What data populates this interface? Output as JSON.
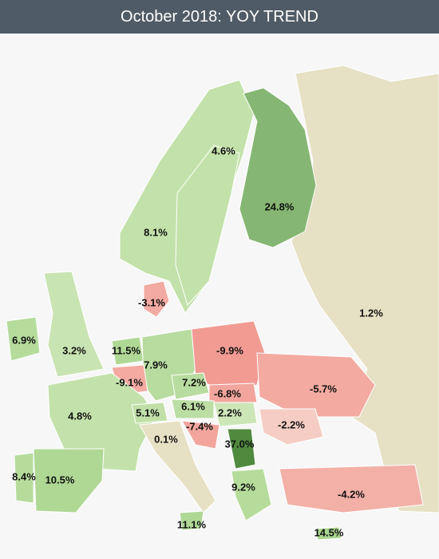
{
  "header": {
    "title": "October 2018: YOY TREND"
  },
  "regions": [
    {
      "label": "4.6%",
      "color": "#c3e2ab"
    },
    {
      "label": "24.8%",
      "color": "#86b673"
    },
    {
      "label": "8.1%",
      "color": "#c3e2ab"
    },
    {
      "label": "-3.1%",
      "color": "#f2aaa2"
    },
    {
      "label": "1.2%",
      "color": "#e6e0c4"
    },
    {
      "label": "6.9%",
      "color": "#b6dc9c"
    },
    {
      "label": "3.2%",
      "color": "#c8e4b2"
    },
    {
      "label": "11.5%",
      "color": "#b0d895"
    },
    {
      "label": "7.9%",
      "color": "#b8dc9f"
    },
    {
      "label": "-9.9%",
      "color": "#f19b93"
    },
    {
      "label": "-9.1%",
      "color": "#f4aaa1"
    },
    {
      "label": "7.2%",
      "color": "#b8dc9f"
    },
    {
      "label": "-6.8%",
      "color": "#f2a59c"
    },
    {
      "label": "-5.7%",
      "color": "#f3aaa1"
    },
    {
      "label": "4.8%",
      "color": "#c3e2ab"
    },
    {
      "label": "5.1%",
      "color": "#c0e0a8"
    },
    {
      "label": "6.1%",
      "color": "#bcde a4"
    },
    {
      "label": "2.2%",
      "color": "#cde6b8"
    },
    {
      "label": "-2.2%",
      "color": "#f5cdc4"
    },
    {
      "label": "0.1%",
      "color": "#e6e0c4"
    },
    {
      "label": "-7.4%",
      "color": "#f2a59c"
    },
    {
      "label": "37.0%",
      "color": "#4f8a3e"
    },
    {
      "label": "8.4%",
      "color": "#b6dc9c"
    },
    {
      "label": "10.5%",
      "color": "#b0d895"
    },
    {
      "label": "9.2%",
      "color": "#b6dc9c"
    },
    {
      "label": "-4.2%",
      "color": "#f3b0a7"
    },
    {
      "label": "11.1%",
      "color": "#b0d895"
    },
    {
      "label": "14.5%",
      "color": "#a9d48e"
    }
  ]
}
